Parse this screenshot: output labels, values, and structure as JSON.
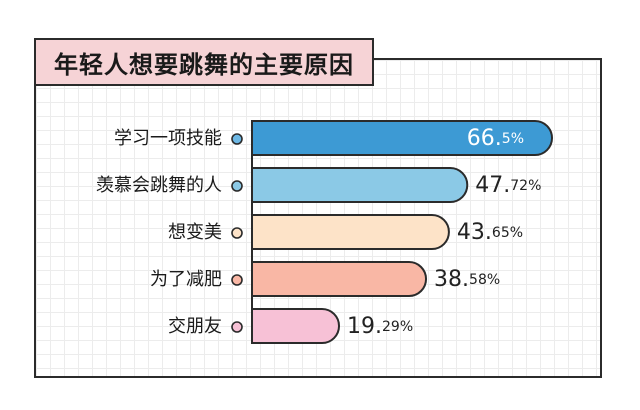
{
  "chart_data": {
    "type": "bar",
    "orientation": "horizontal",
    "title": "年轻人想要跳舞的主要原因",
    "categories": [
      "学习一项技能",
      "羡慕会跳舞的人",
      "想变美",
      "为了减肥",
      "交朋友"
    ],
    "values": [
      66.5,
      47.72,
      43.65,
      38.58,
      19.29
    ],
    "value_labels": [
      {
        "main": "66.",
        "small": "5%"
      },
      {
        "main": "47.",
        "small": "72%"
      },
      {
        "main": "43.",
        "small": "65%"
      },
      {
        "main": "38.",
        "small": "58%"
      },
      {
        "main": "19.",
        "small": "29%"
      }
    ],
    "unit": "%",
    "bar_colors": [
      "#3d9ad4",
      "#8bc9e6",
      "#fde3c8",
      "#f9b7a5",
      "#f7c1d6"
    ],
    "marker_colors": [
      "#6cb7e4",
      "#8bc9e6",
      "#fde3c8",
      "#f9b7a5",
      "#f7c1d6"
    ],
    "inside_label_color": "#ffffff",
    "outside_label_color": "#222222",
    "grid": true,
    "xlim": [
      0,
      70
    ]
  }
}
